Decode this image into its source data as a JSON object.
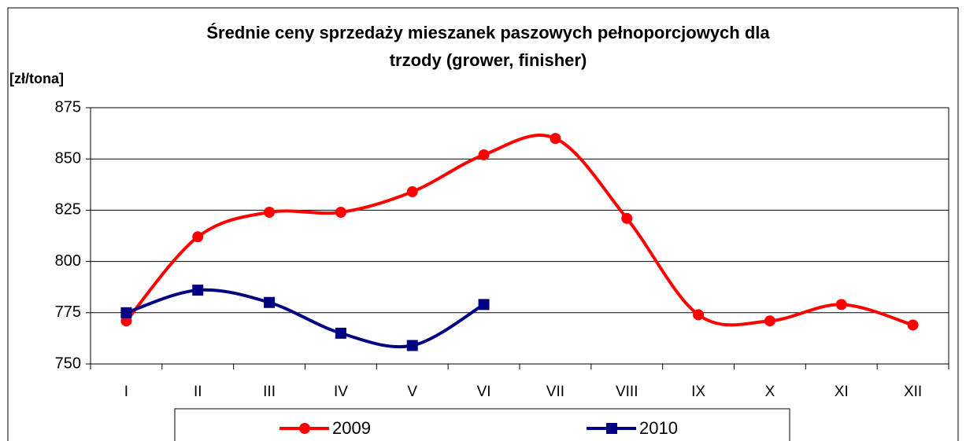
{
  "chart_data": {
    "type": "line",
    "title": [
      "Średnie ceny sprzedaży mieszanek paszowych pełnoporcjowych dla",
      "trzody (grower, finisher)"
    ],
    "y_label": "[zł/tona]",
    "categories": [
      "I",
      "II",
      "III",
      "IV",
      "V",
      "VI",
      "VII",
      "VIII",
      "IX",
      "X",
      "XI",
      "XII"
    ],
    "series": [
      {
        "name": "2009",
        "color": "#ff0000",
        "marker": "circle",
        "values": [
          771,
          812,
          824,
          824,
          834,
          852,
          860,
          821,
          774,
          771,
          779,
          769
        ]
      },
      {
        "name": "2010",
        "color": "#000080",
        "marker": "square",
        "values": [
          775,
          786,
          780,
          765,
          759,
          779,
          null,
          null,
          null,
          null,
          null,
          null
        ]
      }
    ],
    "ylim": [
      750,
      875
    ],
    "yticks": [
      750,
      775,
      800,
      825,
      850,
      875
    ],
    "grid": true,
    "smooth": true,
    "legend": "bottom"
  }
}
